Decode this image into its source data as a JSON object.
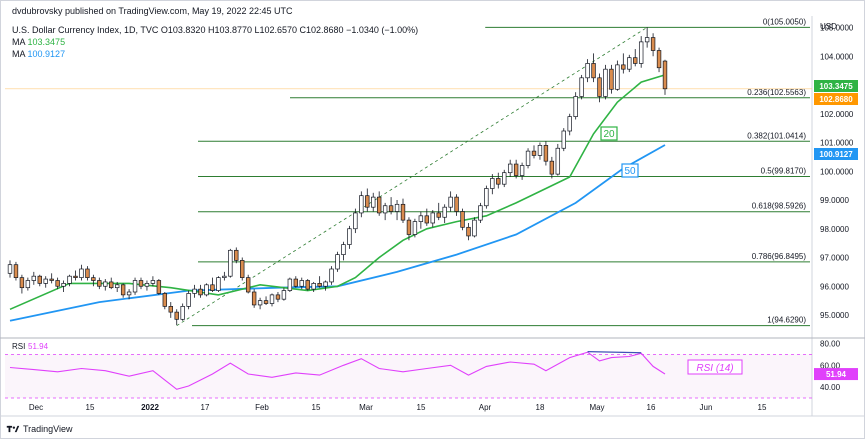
{
  "publisher": "dvdubrovsky published on TradingView.com, May 19, 2022 22:45 UTC",
  "header": {
    "symbol": "U.S. Dollar Currency Index, 1D, TVC",
    "ohlc": "O103.8320 H103.8770 L102.6570 C102.8680 −1.0340 (−1.00%)",
    "ma1_label": "MA",
    "ma1_value": "103.3475",
    "ma2_label": "MA",
    "ma2_value": "100.9127"
  },
  "footer": {
    "brand": "TradingView"
  },
  "colors": {
    "ma20": "#2fb344",
    "ma50": "#2196f3",
    "fib": "#2e7d32",
    "rsi": "#e040fb",
    "price_tag": "#ff9800",
    "up_candle": "#ffffff",
    "down_candle": "#d98c4e"
  },
  "chart_data": {
    "type": "candlestick",
    "currency": "USD",
    "x_ticks": [
      "Dec",
      "15",
      "2022",
      "17",
      "Feb",
      "15",
      "Mar",
      "15",
      "Apr",
      "18",
      "May",
      "16",
      "Jun",
      "15"
    ],
    "y_ticks": [
      "105.0000",
      "104.0000",
      "103.0000",
      "102.0000",
      "101.0000",
      "100.0000",
      "99.0000",
      "98.0000",
      "97.0000",
      "96.0000",
      "95.0000"
    ],
    "ylim": [
      94.2,
      105.4
    ],
    "price_labels": [
      {
        "text": "103.3475",
        "value": 103.3475,
        "color": "#2fb344"
      },
      {
        "text": "102.8680",
        "value": 102.868,
        "color": "#ff9800"
      },
      {
        "text": "100.9127",
        "value": 100.9127,
        "color": "#2196f3"
      }
    ],
    "fibonacci": [
      {
        "label": "0(105.0050)",
        "value": 105.005
      },
      {
        "label": "0.236(102.5563)",
        "value": 102.5563
      },
      {
        "label": "0.382(101.0414)",
        "value": 101.0414
      },
      {
        "label": "0.5(99.8170)",
        "value": 99.817
      },
      {
        "label": "0.618(98.5926)",
        "value": 98.5926
      },
      {
        "label": "0.786(96.8495)",
        "value": 96.8495
      },
      {
        "label": "1(94.6290)",
        "value": 94.629
      }
    ],
    "ma_labels": [
      {
        "text": "20",
        "color": "#2fb344"
      },
      {
        "text": "50",
        "color": "#2196f3"
      }
    ],
    "candles": [
      [
        96.45,
        96.9,
        96.3,
        96.75
      ],
      [
        96.75,
        96.85,
        96.2,
        96.3
      ],
      [
        96.3,
        96.4,
        95.75,
        95.95
      ],
      [
        95.95,
        96.3,
        95.85,
        96.2
      ],
      [
        96.2,
        96.5,
        96.05,
        96.35
      ],
      [
        96.35,
        96.4,
        96.0,
        96.1
      ],
      [
        96.1,
        96.35,
        95.95,
        96.25
      ],
      [
        96.25,
        96.45,
        96.1,
        96.2
      ],
      [
        96.2,
        96.3,
        95.9,
        96.0
      ],
      [
        96.0,
        96.2,
        95.8,
        96.1
      ],
      [
        96.1,
        96.4,
        96.0,
        96.35
      ],
      [
        96.35,
        96.55,
        96.2,
        96.3
      ],
      [
        96.3,
        96.75,
        96.2,
        96.6
      ],
      [
        96.6,
        96.7,
        96.2,
        96.3
      ],
      [
        96.3,
        96.4,
        96.0,
        96.2
      ],
      [
        96.2,
        96.3,
        95.9,
        96.0
      ],
      [
        96.0,
        96.25,
        95.85,
        96.15
      ],
      [
        96.15,
        96.3,
        95.9,
        95.95
      ],
      [
        95.95,
        96.15,
        95.8,
        96.05
      ],
      [
        96.05,
        96.1,
        95.6,
        95.7
      ],
      [
        95.7,
        95.9,
        95.55,
        95.8
      ],
      [
        95.8,
        96.3,
        95.7,
        96.2
      ],
      [
        96.2,
        96.3,
        95.9,
        96.0
      ],
      [
        96.0,
        96.2,
        95.85,
        96.1
      ],
      [
        96.1,
        96.35,
        96.0,
        96.2
      ],
      [
        96.2,
        96.25,
        95.7,
        95.75
      ],
      [
        95.75,
        95.8,
        95.2,
        95.3
      ],
      [
        95.3,
        95.45,
        94.9,
        95.1
      ],
      [
        95.1,
        95.2,
        94.65,
        94.85
      ],
      [
        94.85,
        95.4,
        94.8,
        95.3
      ],
      [
        95.3,
        95.85,
        95.2,
        95.75
      ],
      [
        95.75,
        96.05,
        95.6,
        95.9
      ],
      [
        95.9,
        96.05,
        95.6,
        95.7
      ],
      [
        95.7,
        96.1,
        95.65,
        96.05
      ],
      [
        96.05,
        96.3,
        95.8,
        95.85
      ],
      [
        95.85,
        96.35,
        95.8,
        96.3
      ],
      [
        96.3,
        96.5,
        96.2,
        96.35
      ],
      [
        96.35,
        97.3,
        96.3,
        97.25
      ],
      [
        97.25,
        97.35,
        96.8,
        96.9
      ],
      [
        96.9,
        97.0,
        96.2,
        96.3
      ],
      [
        96.3,
        96.4,
        95.75,
        95.8
      ],
      [
        95.8,
        95.9,
        95.25,
        95.35
      ],
      [
        95.35,
        95.6,
        95.2,
        95.5
      ],
      [
        95.5,
        95.65,
        95.35,
        95.4
      ],
      [
        95.4,
        95.75,
        95.3,
        95.7
      ],
      [
        95.7,
        95.8,
        95.45,
        95.55
      ],
      [
        95.55,
        95.95,
        95.5,
        95.85
      ],
      [
        95.85,
        96.3,
        95.8,
        96.25
      ],
      [
        96.25,
        96.35,
        95.95,
        96.0
      ],
      [
        96.0,
        96.3,
        95.9,
        96.2
      ],
      [
        96.2,
        96.25,
        95.85,
        95.9
      ],
      [
        95.9,
        96.15,
        95.8,
        96.1
      ],
      [
        96.1,
        96.35,
        95.95,
        96.0
      ],
      [
        96.0,
        96.2,
        95.85,
        96.15
      ],
      [
        96.15,
        96.7,
        96.05,
        96.6
      ],
      [
        96.6,
        97.2,
        96.5,
        97.1
      ],
      [
        97.1,
        97.55,
        96.9,
        97.45
      ],
      [
        97.45,
        98.1,
        97.3,
        98.0
      ],
      [
        98.0,
        98.7,
        97.85,
        98.55
      ],
      [
        98.55,
        99.3,
        98.4,
        99.15
      ],
      [
        99.15,
        99.4,
        98.6,
        98.75
      ],
      [
        98.75,
        99.25,
        98.6,
        99.1
      ],
      [
        99.1,
        99.3,
        98.45,
        98.55
      ],
      [
        98.55,
        98.9,
        98.3,
        98.8
      ],
      [
        98.8,
        99.1,
        98.5,
        98.6
      ],
      [
        98.6,
        99.0,
        98.3,
        98.85
      ],
      [
        98.85,
        99.05,
        98.2,
        98.3
      ],
      [
        98.3,
        98.4,
        97.6,
        97.8
      ],
      [
        97.8,
        98.35,
        97.7,
        98.25
      ],
      [
        98.25,
        98.6,
        98.0,
        98.45
      ],
      [
        98.45,
        98.7,
        98.1,
        98.2
      ],
      [
        98.2,
        98.65,
        98.05,
        98.55
      ],
      [
        98.55,
        98.9,
        98.3,
        98.4
      ],
      [
        98.4,
        98.85,
        98.2,
        98.75
      ],
      [
        98.75,
        99.3,
        98.6,
        99.1
      ],
      [
        99.1,
        99.2,
        98.45,
        98.6
      ],
      [
        98.6,
        98.7,
        97.95,
        98.05
      ],
      [
        98.05,
        98.2,
        97.6,
        97.75
      ],
      [
        97.75,
        98.4,
        97.7,
        98.3
      ],
      [
        98.3,
        98.9,
        98.2,
        98.8
      ],
      [
        98.8,
        99.5,
        98.7,
        99.4
      ],
      [
        99.4,
        99.9,
        99.2,
        99.75
      ],
      [
        99.75,
        99.95,
        99.4,
        99.55
      ],
      [
        99.55,
        100.05,
        99.45,
        99.95
      ],
      [
        99.95,
        100.4,
        99.8,
        100.25
      ],
      [
        100.25,
        100.4,
        99.75,
        99.85
      ],
      [
        99.85,
        100.3,
        99.7,
        100.2
      ],
      [
        100.2,
        100.8,
        100.1,
        100.7
      ],
      [
        100.7,
        100.9,
        100.45,
        100.55
      ],
      [
        100.55,
        101.0,
        100.4,
        100.9
      ],
      [
        100.9,
        101.05,
        100.2,
        100.35
      ],
      [
        100.35,
        100.5,
        99.75,
        99.9
      ],
      [
        99.9,
        100.95,
        99.85,
        100.8
      ],
      [
        100.8,
        101.5,
        100.7,
        101.4
      ],
      [
        101.4,
        102.0,
        101.25,
        101.9
      ],
      [
        101.9,
        102.75,
        101.8,
        102.6
      ],
      [
        102.6,
        103.35,
        102.5,
        103.25
      ],
      [
        103.25,
        103.9,
        103.1,
        103.75
      ],
      [
        103.75,
        104.1,
        103.1,
        103.25
      ],
      [
        103.25,
        103.4,
        102.4,
        102.6
      ],
      [
        102.6,
        103.7,
        102.5,
        103.55
      ],
      [
        103.55,
        103.7,
        102.7,
        102.85
      ],
      [
        102.85,
        103.85,
        102.8,
        103.7
      ],
      [
        103.7,
        104.1,
        103.4,
        103.55
      ],
      [
        103.55,
        104.05,
        103.45,
        103.95
      ],
      [
        103.95,
        104.25,
        103.65,
        103.75
      ],
      [
        103.75,
        104.7,
        103.6,
        104.5
      ],
      [
        104.5,
        105.005,
        104.3,
        104.65
      ],
      [
        104.65,
        104.8,
        104.0,
        104.2
      ],
      [
        104.2,
        104.3,
        103.45,
        103.6
      ],
      [
        103.832,
        103.877,
        102.657,
        102.868
      ]
    ],
    "ma20": [
      [
        0,
        95.2
      ],
      [
        10,
        96.1
      ],
      [
        20,
        96.1
      ],
      [
        27,
        95.95
      ],
      [
        35,
        95.7
      ],
      [
        42,
        96.05
      ],
      [
        50,
        95.85
      ],
      [
        55,
        96.0
      ],
      [
        58,
        96.3
      ],
      [
        62,
        97.0
      ],
      [
        66,
        97.6
      ],
      [
        70,
        98.0
      ],
      [
        75,
        98.25
      ],
      [
        80,
        98.45
      ],
      [
        85,
        98.9
      ],
      [
        90,
        99.4
      ],
      [
        94,
        99.8
      ],
      [
        98,
        101.3
      ],
      [
        102,
        102.4
      ],
      [
        106,
        103.1
      ],
      [
        110,
        103.35
      ]
    ],
    "ma50": [
      [
        0,
        94.8
      ],
      [
        15,
        95.45
      ],
      [
        30,
        95.85
      ],
      [
        45,
        95.95
      ],
      [
        55,
        96.0
      ],
      [
        65,
        96.5
      ],
      [
        75,
        97.1
      ],
      [
        85,
        97.8
      ],
      [
        95,
        98.9
      ],
      [
        103,
        100.1
      ],
      [
        110,
        100.9127
      ]
    ],
    "rsi": {
      "label": "RSI",
      "value": "51.94",
      "title": "RSI (14)",
      "y_ticks": [
        "80.00",
        "60.00",
        "51.94",
        "40.00"
      ],
      "ylim": [
        30,
        85
      ],
      "levels": [
        70,
        30
      ],
      "points": [
        [
          0,
          58
        ],
        [
          4,
          56
        ],
        [
          8,
          54
        ],
        [
          12,
          57
        ],
        [
          16,
          55
        ],
        [
          20,
          50
        ],
        [
          24,
          55
        ],
        [
          28,
          38
        ],
        [
          30,
          41
        ],
        [
          34,
          52
        ],
        [
          37,
          62
        ],
        [
          40,
          52
        ],
        [
          44,
          49
        ],
        [
          48,
          53
        ],
        [
          52,
          51
        ],
        [
          56,
          60
        ],
        [
          59,
          66
        ],
        [
          62,
          57
        ],
        [
          66,
          54
        ],
        [
          70,
          57
        ],
        [
          74,
          60
        ],
        [
          77,
          51
        ],
        [
          80,
          59
        ],
        [
          84,
          63
        ],
        [
          88,
          61
        ],
        [
          90,
          55
        ],
        [
          94,
          67
        ],
        [
          97,
          72
        ],
        [
          99,
          64
        ],
        [
          101,
          67
        ],
        [
          104,
          68
        ],
        [
          106,
          71
        ],
        [
          108,
          59
        ],
        [
          110,
          52
        ]
      ]
    }
  }
}
